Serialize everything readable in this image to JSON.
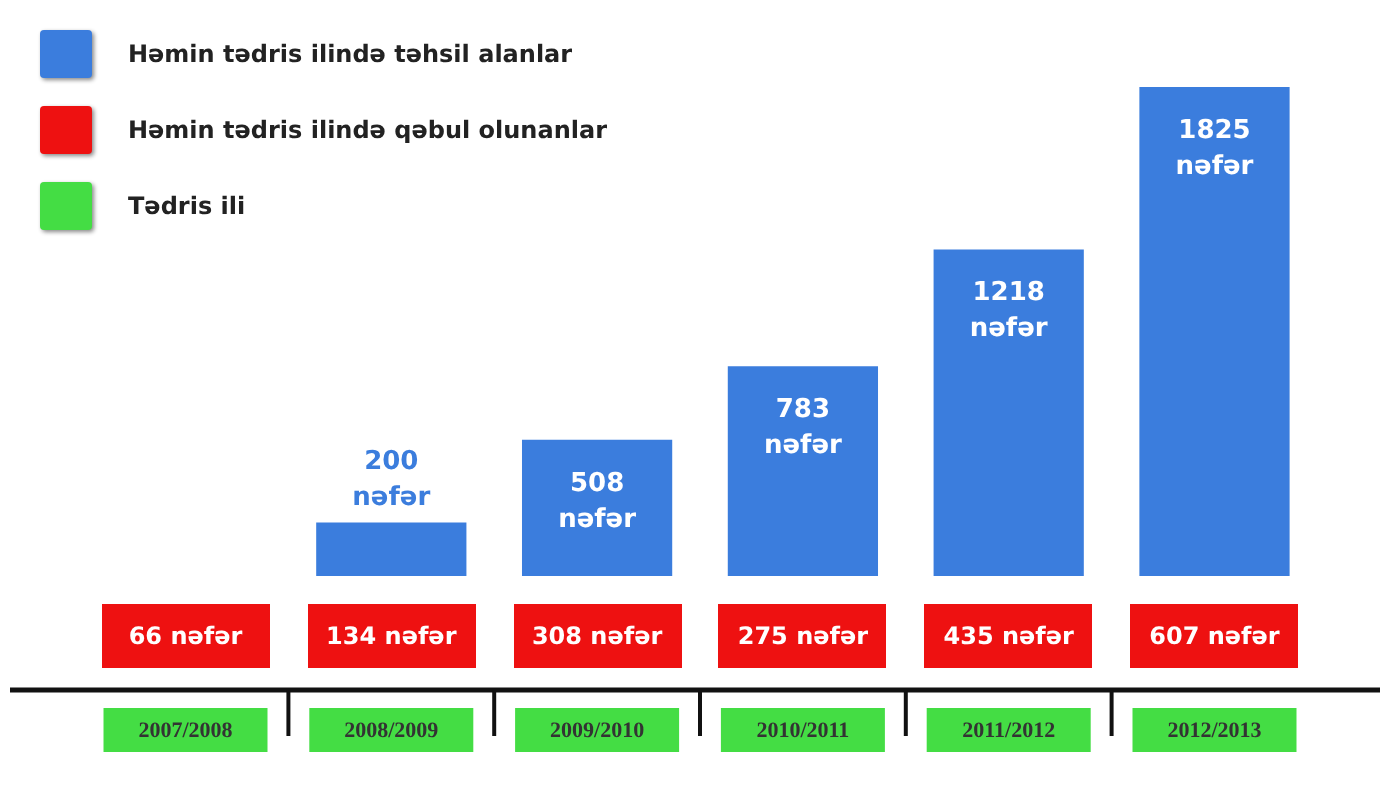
{
  "chart_data": [
    {
      "type": "bar",
      "xlabel": "Tədris ili",
      "categories": [
        "2007/2008",
        "2008/2009",
        "2009/2010",
        "2010/2011",
        "2011/2012",
        "2012/2013"
      ],
      "series": [
        {
          "name": "Həmin tədris ilində təhsil alanlar",
          "color": "#3b7ddd",
          "values": [
            null,
            200,
            508,
            783,
            1218,
            1825
          ],
          "value_labels": [
            null,
            "200 nəfər",
            "508 nəfər",
            "783 nəfər",
            "1218 nəfər",
            "1825 nəfər"
          ]
        }
      ],
      "tick_labels": "x",
      "legend": "top left"
    },
    {
      "type": "other",
      "series": [
        {
          "name": "Həmin tədris ilində qəbul olunanlar",
          "color": "#ee1111",
          "values": [
            66,
            134,
            308,
            275,
            435,
            607
          ],
          "value_labels": [
            "66 nəfər",
            "134 nəfər",
            "308 nəfər",
            "275 nəfər",
            "435 nəfər",
            "607 nəfər"
          ]
        }
      ],
      "legend": "top left"
    }
  ]
}
